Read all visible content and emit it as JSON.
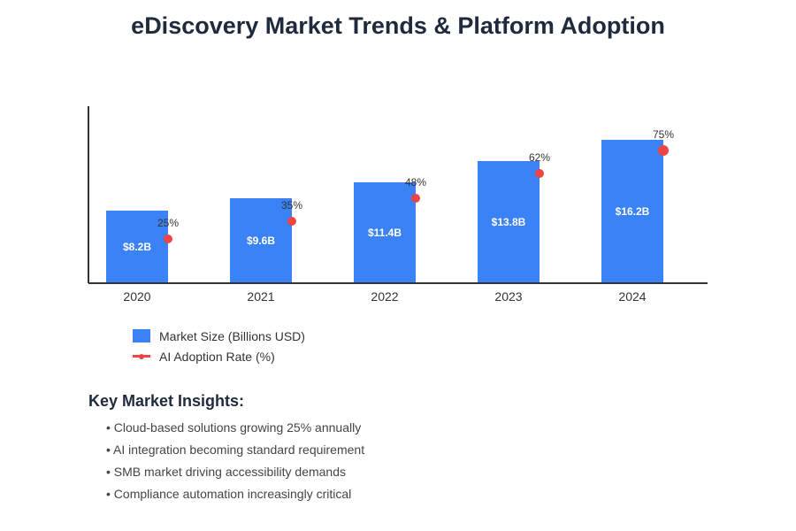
{
  "title": "eDiscovery Market Trends & Platform Adoption",
  "colors": {
    "bar": "#3b82f6",
    "line": "#ef4444",
    "axis": "#333333",
    "title": "#1f2a3c"
  },
  "chart_data": {
    "type": "bar",
    "title": "eDiscovery Market Trends & Platform Adoption",
    "xlabel": "",
    "ylabel": "",
    "categories": [
      "2020",
      "2021",
      "2022",
      "2023",
      "2024"
    ],
    "series": [
      {
        "name": "Market Size (Billions USD)",
        "type": "bar",
        "values": [
          8.2,
          9.6,
          11.4,
          13.8,
          16.2
        ],
        "labels": [
          "$8.2B",
          "$9.6B",
          "$11.4B",
          "$13.8B",
          "$16.2B"
        ]
      },
      {
        "name": "AI Adoption Rate (%)",
        "type": "scatter",
        "values": [
          25,
          35,
          48,
          62,
          75
        ],
        "labels": [
          "25%",
          "35%",
          "48%",
          "62%",
          "75%"
        ]
      }
    ],
    "ylim": [
      0,
      20
    ],
    "ylim_secondary": [
      0,
      100
    ],
    "grid": false,
    "legend": "bottom-left"
  },
  "legend": {
    "items": [
      "Market Size (Billions USD)",
      "AI Adoption Rate (%)"
    ]
  },
  "insights": {
    "heading": "Key Market Insights:",
    "items": [
      "Cloud-based solutions growing 25% annually",
      "AI integration becoming standard requirement",
      "SMB market driving accessibility demands",
      "Compliance automation increasingly critical"
    ]
  }
}
